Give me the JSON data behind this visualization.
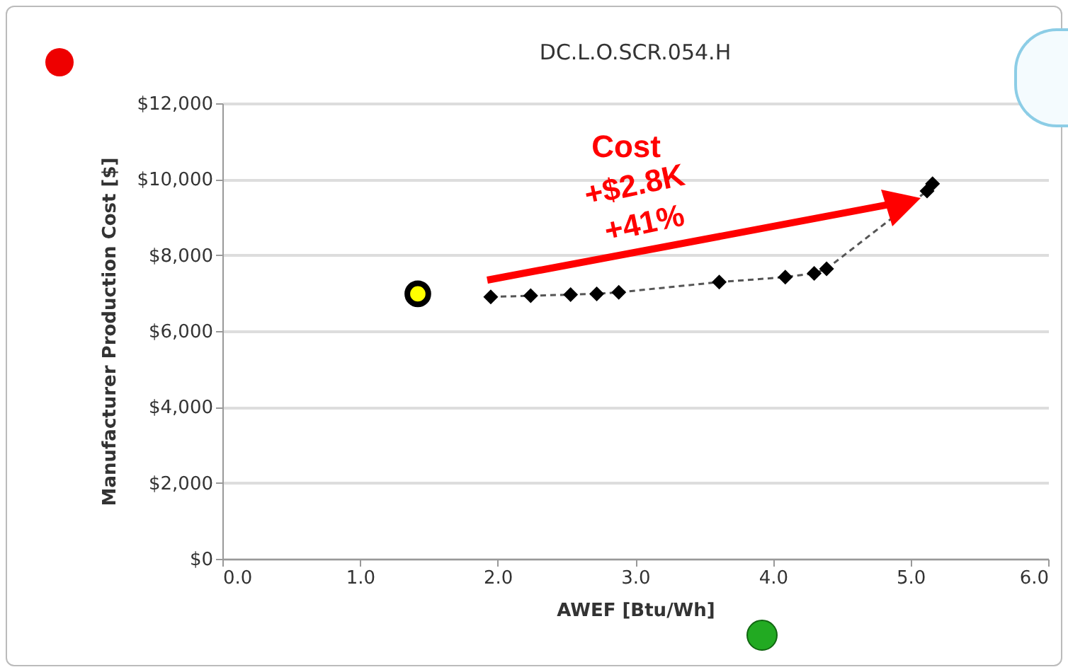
{
  "chart_data": {
    "type": "line",
    "title": "DC.L.O.SCR.054.H",
    "xlabel": "AWEF [Btu/Wh]",
    "ylabel": "Manufacturer Production Cost [$]",
    "xlim": [
      0,
      6
    ],
    "xticks": [
      {
        "value": 0,
        "label": "0.0"
      },
      {
        "value": 1,
        "label": "1.0"
      },
      {
        "value": 2,
        "label": "2.0"
      },
      {
        "value": 3,
        "label": "3.0"
      },
      {
        "value": 4,
        "label": "4.0"
      },
      {
        "value": 5,
        "label": "5.0"
      },
      {
        "value": 6,
        "label": "6.0"
      }
    ],
    "ylim": [
      0,
      12000
    ],
    "yticks": [
      {
        "value": 0,
        "label": "$0"
      },
      {
        "value": 2000,
        "label": "$2,000"
      },
      {
        "value": 4000,
        "label": "$4,000"
      },
      {
        "value": 6000,
        "label": "$6,000"
      },
      {
        "value": 8000,
        "label": "$8,000"
      },
      {
        "value": 10000,
        "label": "$10,000"
      },
      {
        "value": 12000,
        "label": "$12,000"
      }
    ],
    "grid": "y",
    "series": [
      {
        "color": "#000000",
        "marker": "diamond",
        "line_style": "dashed",
        "x": [
          1.95,
          2.24,
          2.53,
          2.72,
          2.88,
          3.61,
          4.09,
          4.3,
          4.39,
          5.12,
          5.16
        ],
        "values": [
          6900,
          6930,
          6960,
          6980,
          7020,
          7290,
          7420,
          7520,
          7640,
          9690,
          9880
        ]
      },
      {
        "type": "scatter",
        "color": "#ffff00",
        "marker": "circle",
        "x": [
          1.42
        ],
        "values": [
          6980
        ]
      }
    ],
    "annotations": [
      "Cost",
      "+$2.8K",
      "+41%"
    ]
  }
}
